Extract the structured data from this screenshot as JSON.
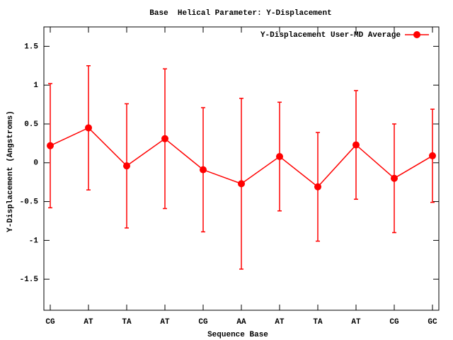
{
  "chart_data": {
    "type": "line",
    "title": "Base  Helical Parameter: Y-Displacement",
    "x_label": "Sequence Base",
    "y_label": "Y-Displacement (Angstroms)",
    "categories": [
      "CG",
      "AT",
      "TA",
      "AT",
      "CG",
      "AA",
      "AT",
      "TA",
      "AT",
      "CG",
      "GC"
    ],
    "series": [
      {
        "name": "Y-Displacement User-MD Average",
        "color": "#ff0000",
        "values": [
          0.22,
          0.45,
          -0.04,
          0.31,
          -0.09,
          -0.27,
          0.08,
          -0.31,
          0.23,
          -0.2,
          0.09
        ],
        "errors": [
          0.8,
          0.8,
          0.8,
          0.9,
          0.8,
          1.1,
          0.7,
          0.7,
          0.7,
          0.7,
          0.6
        ]
      }
    ],
    "ylim": [
      -1.9,
      1.75
    ],
    "yticks": [
      -1.5,
      -1,
      -0.5,
      0,
      0.5,
      1,
      1.5
    ],
    "legend": "top-right"
  }
}
